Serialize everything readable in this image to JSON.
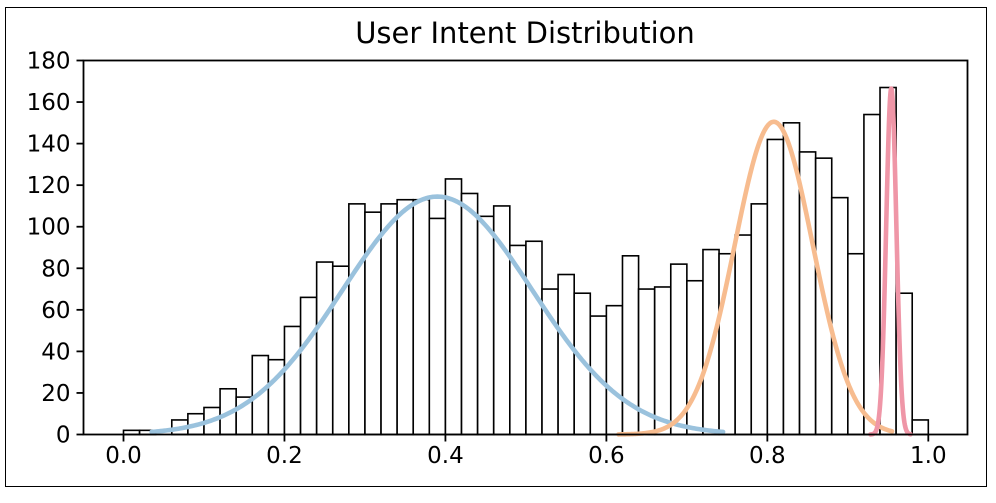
{
  "figure": {
    "title": "User Intent Distribution",
    "background_color": "#ffffff",
    "border_color": "#000000"
  },
  "axes": {
    "xlim": [
      -0.0497,
      1.0487
    ],
    "ylim": [
      0,
      180
    ],
    "x_ticks": [
      {
        "value": 0.0,
        "label": "0.0"
      },
      {
        "value": 0.2,
        "label": "0.2"
      },
      {
        "value": 0.4,
        "label": "0.4"
      },
      {
        "value": 0.6,
        "label": "0.6"
      },
      {
        "value": 0.8,
        "label": "0.8"
      },
      {
        "value": 1.0,
        "label": "1.0"
      }
    ],
    "y_ticks": [
      {
        "value": 0,
        "label": "0"
      },
      {
        "value": 20,
        "label": "20"
      },
      {
        "value": 40,
        "label": "40"
      },
      {
        "value": 60,
        "label": "60"
      },
      {
        "value": 80,
        "label": "80"
      },
      {
        "value": 100,
        "label": "100"
      },
      {
        "value": 120,
        "label": "120"
      },
      {
        "value": 140,
        "label": "140"
      },
      {
        "value": 160,
        "label": "160"
      },
      {
        "value": 180,
        "label": "180"
      }
    ]
  },
  "chart_data": {
    "type": "histogram",
    "title": "User Intent Distribution",
    "xlabel": "",
    "ylabel": "",
    "grid": false,
    "legend": "none",
    "bin_start": 0.0,
    "bin_width": 0.02,
    "counts": [
      2,
      2,
      0,
      7,
      10,
      13,
      22,
      18,
      38,
      36,
      52,
      66,
      83,
      81,
      111,
      107,
      111,
      113,
      113,
      104,
      123,
      116,
      105,
      110,
      91,
      93,
      70,
      77,
      68,
      57,
      62,
      86,
      70,
      71,
      82,
      74,
      89,
      87,
      96,
      111,
      142,
      150,
      136,
      133,
      114,
      87,
      154,
      167,
      68,
      7
    ],
    "bar_fill": "#ffffff",
    "bar_edge": "#000000",
    "curves": [
      {
        "name": "gaussian-component-1",
        "color": "#9ac2dd",
        "mu": 0.39,
        "sigma": 0.118,
        "amplitude": 114.5,
        "x_range": [
          0.035,
          0.745
        ]
      },
      {
        "name": "gaussian-component-2",
        "color": "#f7bc8f",
        "mu": 0.808,
        "sigma": 0.0485,
        "amplitude": 150.5,
        "x_range": [
          0.615,
          0.955
        ]
      },
      {
        "name": "gaussian-component-3",
        "color": "#ef96a7",
        "mu": 0.954,
        "sigma": 0.0063,
        "amplitude": 166.5,
        "x_range": [
          0.928,
          0.978
        ]
      }
    ]
  }
}
